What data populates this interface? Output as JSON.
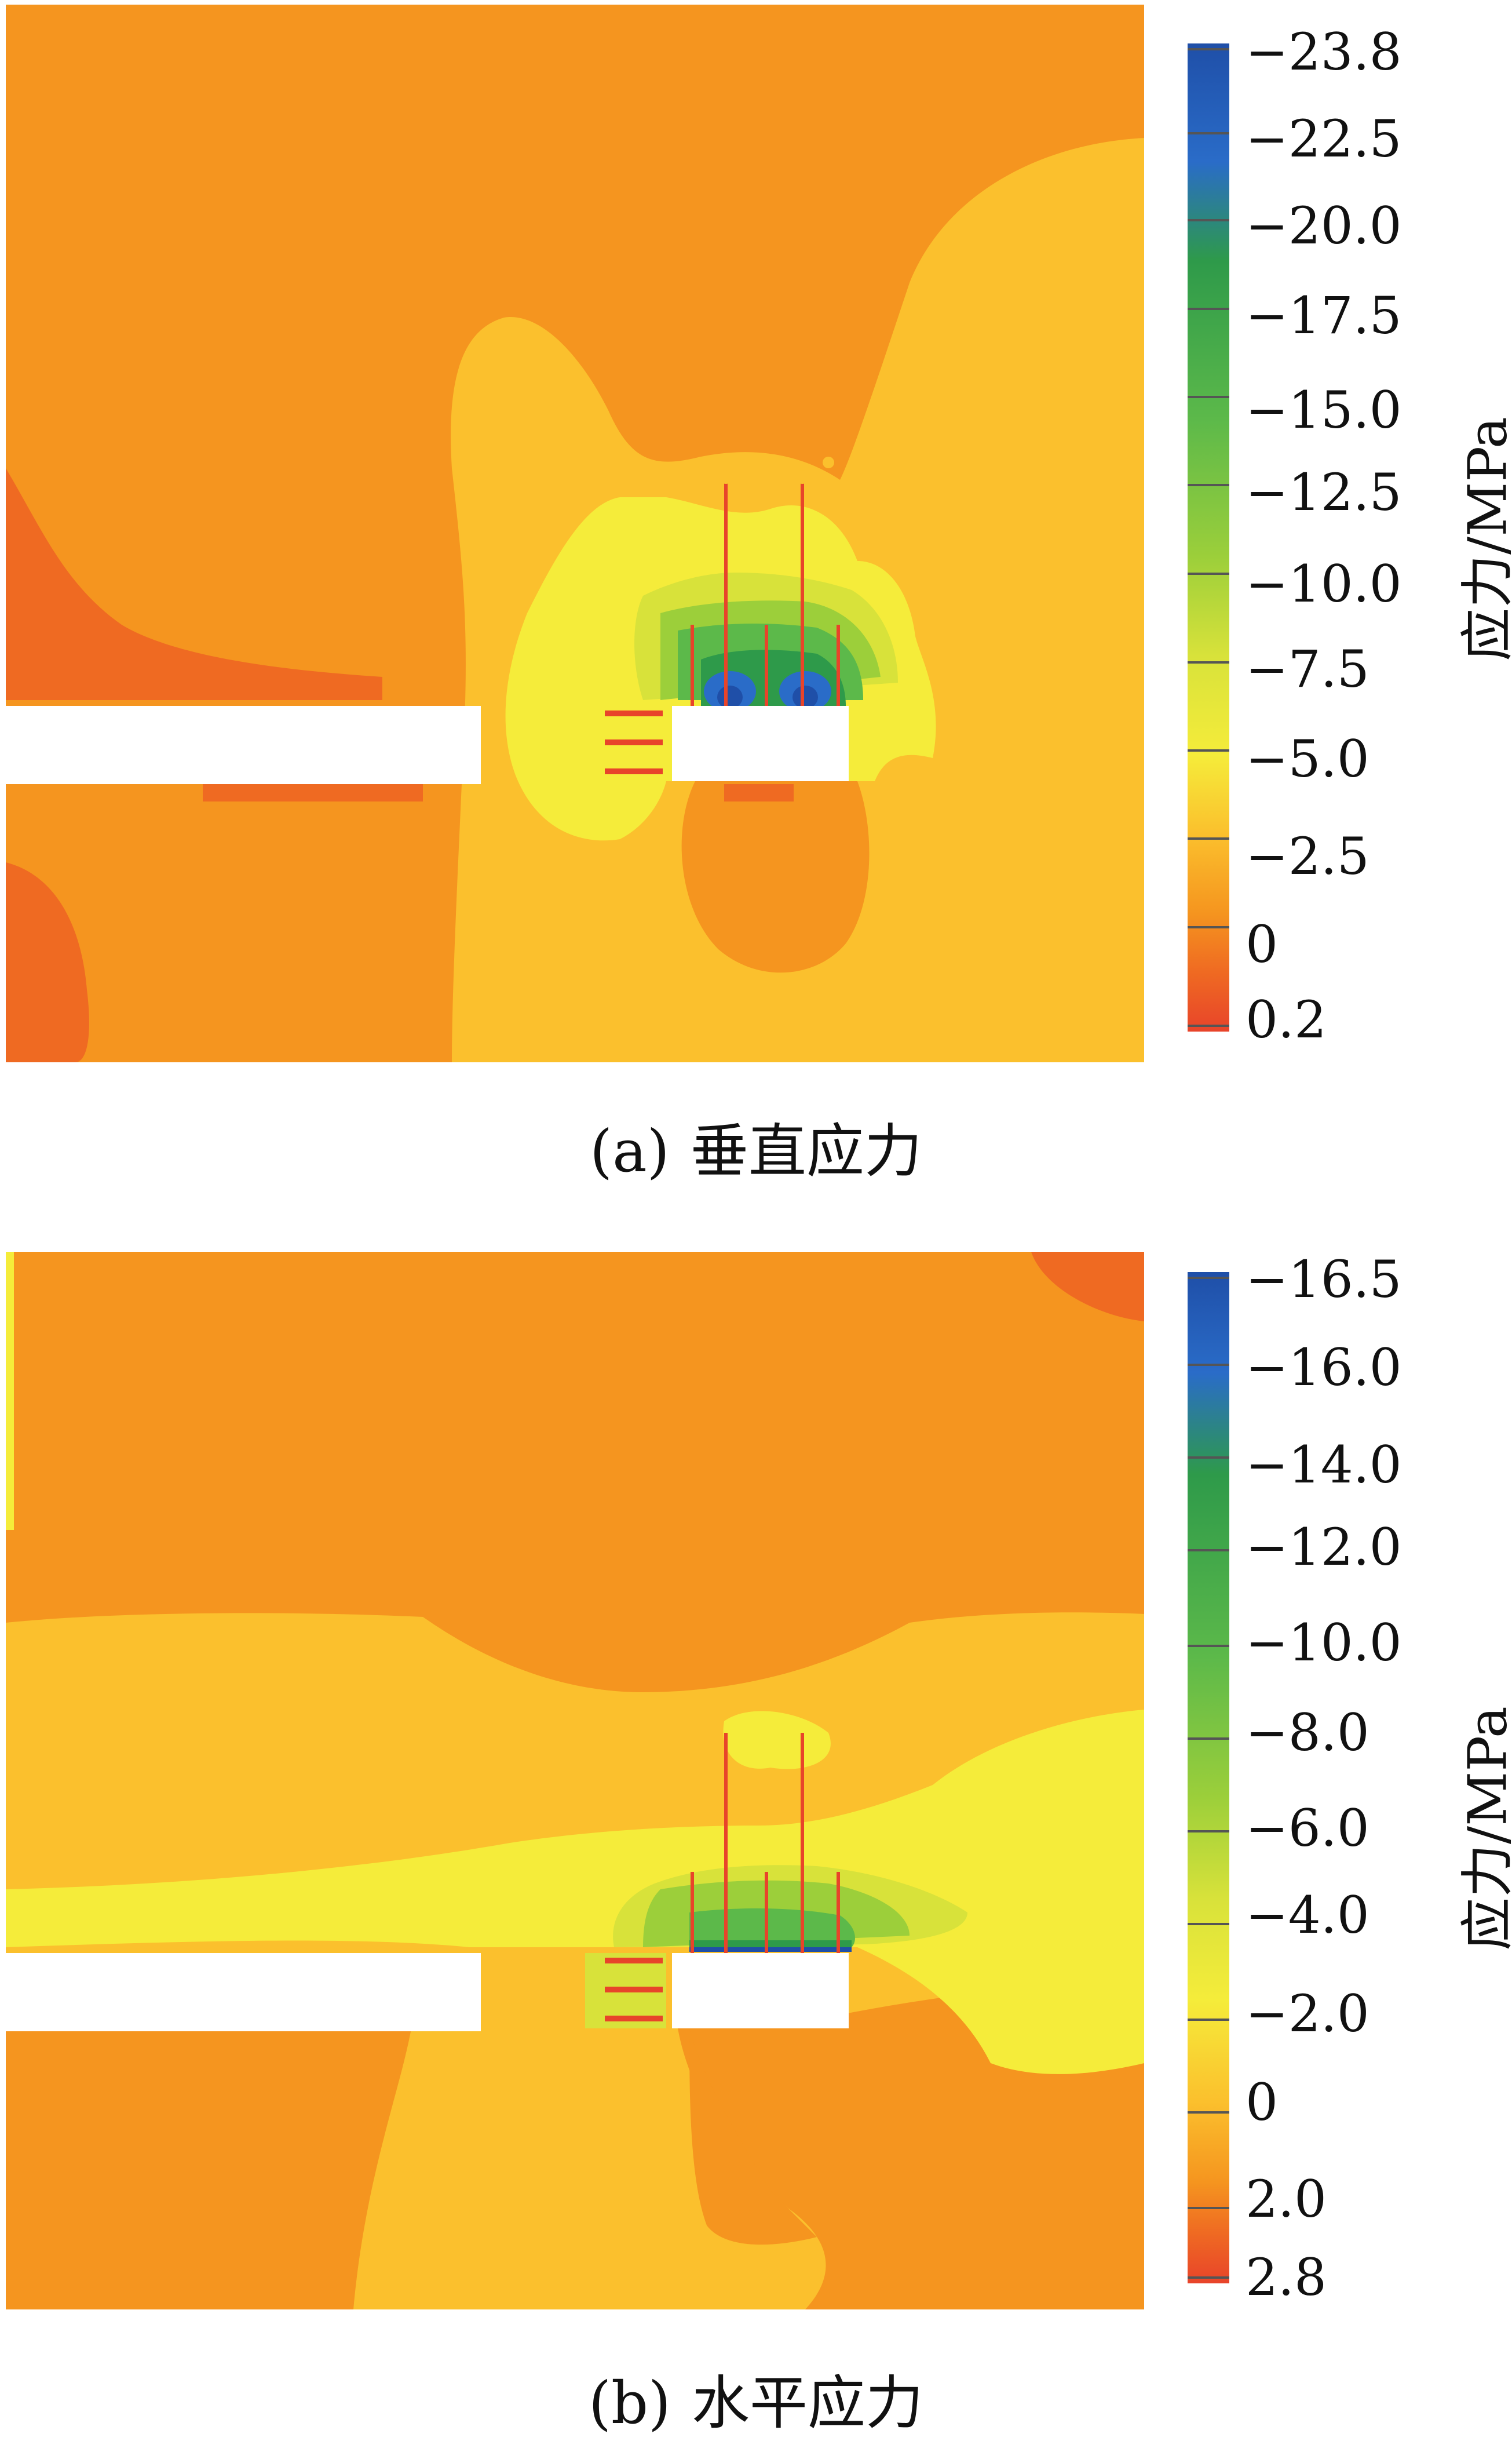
{
  "panels": [
    {
      "caption_label": "(a)",
      "caption_text": "垂直应力",
      "colorbar_title": "应力/MPa",
      "colorbar_ticks": [
        "−23.8",
        "−22.5",
        "−20.0",
        "−17.5",
        "−15.0",
        "−12.5",
        "−10.0",
        "−7.5",
        "−5.0",
        "−2.5",
        "0",
        "0.2"
      ]
    },
    {
      "caption_label": "(b)",
      "caption_text": "水平应力",
      "colorbar_title": "应力/MPa",
      "colorbar_ticks": [
        "−16.5",
        "−16.0",
        "−14.0",
        "−12.0",
        "−10.0",
        "−8.0",
        "−6.0",
        "−4.0",
        "−2.0",
        "0",
        "2.0",
        "2.8"
      ]
    }
  ],
  "colors": {
    "blue_dark": "#1f4fa8",
    "blue": "#2a6cc8",
    "green_dark": "#2e9a4a",
    "green": "#5cb94a",
    "green_light": "#9ccf3a",
    "yellow_green": "#d8e23a",
    "yellow": "#f5ec3a",
    "yellow_orange": "#fbc02d",
    "orange": "#f5951f",
    "orange_red": "#ef6a22",
    "red": "#e8442a"
  }
}
